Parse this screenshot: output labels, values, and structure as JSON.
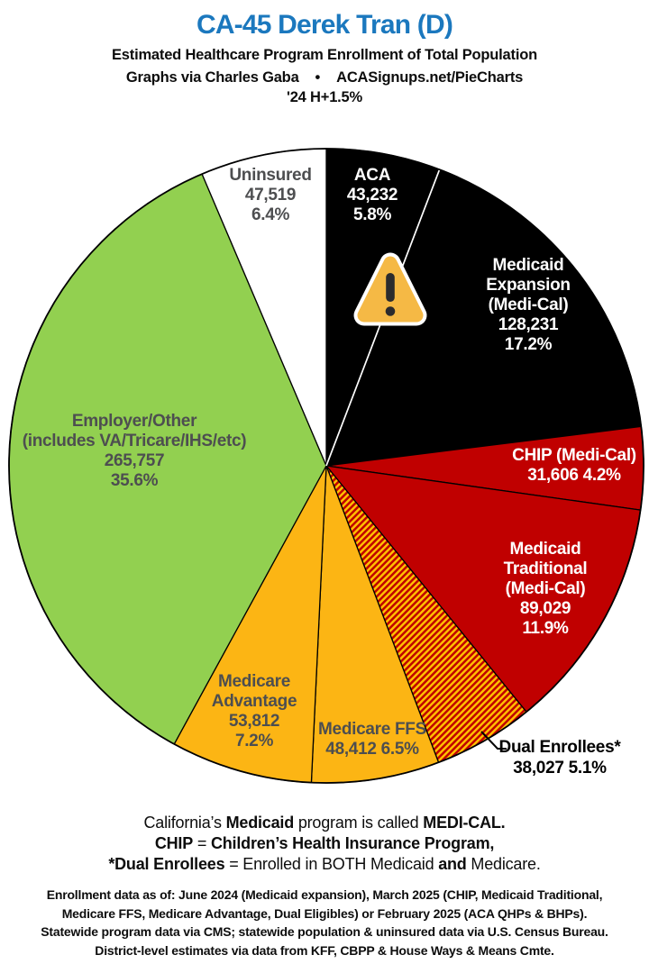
{
  "header": {
    "title": "CA-45 Derek Tran (D)",
    "subtitle1": "Estimated Healthcare Program Enrollment of Total Population",
    "credit_left": "Graphs via Charles Gaba",
    "credit_bullet": "•",
    "credit_right": "ACASignups.net/PieCharts",
    "subtitle3": "'24 H+1.5%"
  },
  "colors": {
    "title_blue": "#1b78be",
    "pie_black": "#000000",
    "pie_red": "#c00000",
    "pie_yellow": "#fcb514",
    "pie_green": "#92d050",
    "pie_white": "#ffffff",
    "hatch_yellow": "#ffc000",
    "label_dark_gray": "#4d4e50",
    "warning_fill": "#f5b945",
    "warning_glyph": "#2b2b2d"
  },
  "chart_data": {
    "type": "pie",
    "direction": "clockwise",
    "start_angle": "12 o'clock",
    "labels_on_slices": true,
    "legend_position": "none",
    "slices": [
      {
        "id": "aca",
        "label": "ACA",
        "value": 43232,
        "value_display": "43,232",
        "pct": 5.8,
        "color": "#000000",
        "text_color": "#ffffff",
        "divider_after": "#ffffff"
      },
      {
        "id": "medicaid-expansion",
        "label": "Medicaid Expansion (Medi-Cal)",
        "value": 128231,
        "value_display": "128,231",
        "pct": 17.2,
        "color": "#000000",
        "text_color": "#ffffff"
      },
      {
        "id": "chip",
        "label": "CHIP (Medi-Cal)",
        "value": 31606,
        "value_display": "31,606",
        "pct": 4.2,
        "color": "#c00000",
        "text_color": "#ffffff"
      },
      {
        "id": "medicaid-traditional",
        "label": "Medicaid Traditional (Medi-Cal)",
        "value": 89029,
        "value_display": "89,029",
        "pct": 11.9,
        "color": "#c00000",
        "text_color": "#ffffff"
      },
      {
        "id": "dual-enrollees",
        "label": "Dual Enrollees*",
        "value": 38027,
        "value_display": "38,027",
        "pct": 5.1,
        "color": "hatch-red-yellow",
        "text_color": "#000000",
        "label_outside": true
      },
      {
        "id": "medicare-ffs",
        "label": "Medicare FFS",
        "value": 48412,
        "value_display": "48,412",
        "pct": 6.5,
        "color": "#fcb514",
        "text_color": "#4d4e50"
      },
      {
        "id": "medicare-advantage",
        "label": "Medicare Advantage",
        "value": 53812,
        "value_display": "53,812",
        "pct": 7.2,
        "color": "#fcb514",
        "text_color": "#4d4e50"
      },
      {
        "id": "employer-other",
        "label": "Employer/Other (includes VA/Tricare/IHS/etc)",
        "value": 265757,
        "value_display": "265,757",
        "pct": 35.6,
        "color": "#92d050",
        "text_color": "#4d4e50"
      },
      {
        "id": "uninsured",
        "label": "Uninsured",
        "value": 47519,
        "value_display": "47,519",
        "pct": 6.4,
        "color": "#ffffff",
        "text_color": "#4d4e50"
      }
    ]
  },
  "labels": {
    "uninsured": [
      "Uninsured",
      "47,519",
      "6.4%"
    ],
    "aca": [
      "ACA",
      "43,232",
      "5.8%"
    ],
    "expansion": [
      "Medicaid",
      "Expansion",
      "(Medi-Cal)",
      "128,231",
      "17.2%"
    ],
    "chip": [
      "CHIP (Medi-Cal)",
      "31,606 4.2%"
    ],
    "traditional": [
      "Medicaid",
      "Traditional",
      "(Medi-Cal)",
      "89,029",
      "11.9%"
    ],
    "dual": [
      "Dual Enrollees*",
      "38,027 5.1%"
    ],
    "ffs": [
      "Medicare FFS",
      "48,412 6.5%"
    ],
    "advantage": [
      "Medicare",
      "Advantage",
      "53,812",
      "7.2%"
    ],
    "employer": [
      "Employer/Other",
      "(includes VA/Tricare/IHS/etc)",
      "265,757",
      "35.6%"
    ]
  },
  "notes": {
    "l1a": "California’s ",
    "l1b": "Medicaid",
    "l1c": " program is called ",
    "l1d": "MEDI-CAL.",
    "l2a": "CHIP",
    "l2b": " = ",
    "l2c": "Children’s Health Insurance Program,",
    "l3a": "*Dual Enrollees",
    "l3b": " = Enrolled in BOTH Medicaid ",
    "l3c": "and",
    "l3d": " Medicare."
  },
  "footer": {
    "line1": "Enrollment data as of: June 2024 (Medicaid expansion), March 2025 (CHIP, Medicaid Traditional,",
    "line2": "Medicare FFS, Medicare Advantage, Dual Eligibles) or February 2025 (ACA QHPs & BHPs).",
    "line3": "Statewide program data via CMS; statewide population & uninsured data via U.S. Census Bureau.",
    "line4": "District-level estimates via data from KFF, CBPP & House Ways & Means Cmte."
  }
}
